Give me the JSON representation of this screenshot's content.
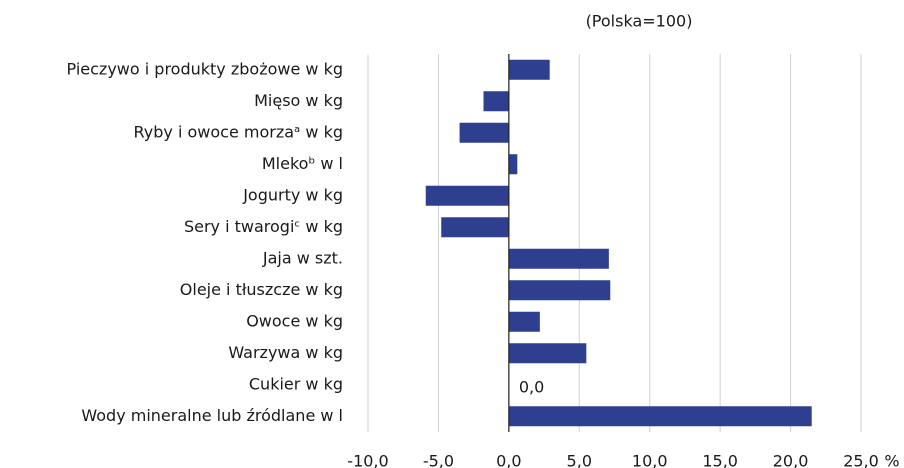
{
  "chart_data": {
    "type": "bar",
    "orientation": "horizontal",
    "subtitle": "(Polska=100)",
    "unit": "%",
    "categories": [
      "Pieczywo i produkty zbożowe w kg",
      "Mięso w kg",
      "Ryby i owoce morzaᵃ w kg",
      "Mlekoᵇ w l",
      "Jogurty w kg",
      "Sery i twarogiᶜ w kg",
      "Jaja w szt.",
      "Oleje i tłuszcze w kg",
      "Owoce w kg",
      "Warzywa w kg",
      "Cukier w kg",
      "Wody mineralne lub źródlane w l"
    ],
    "values": [
      2.9,
      -1.8,
      -3.5,
      0.6,
      -5.9,
      -4.8,
      7.1,
      7.2,
      2.2,
      5.5,
      0.0,
      21.5
    ],
    "value_labels": [
      null,
      null,
      null,
      null,
      null,
      null,
      null,
      null,
      null,
      null,
      "0,0",
      null
    ],
    "color": "#2e3f8f",
    "xlim": [
      -10,
      25
    ],
    "xticks": [
      {
        "value": -10,
        "label": "-10,0"
      },
      {
        "value": -5,
        "label": "-5,0"
      },
      {
        "value": 0,
        "label": "0,0"
      },
      {
        "value": 5,
        "label": "5,0"
      },
      {
        "value": 10,
        "label": "10,0"
      },
      {
        "value": 15,
        "label": "15,0"
      },
      {
        "value": 20,
        "label": "20,0"
      },
      {
        "value": 25,
        "label": "25,0"
      }
    ],
    "grid": true
  }
}
